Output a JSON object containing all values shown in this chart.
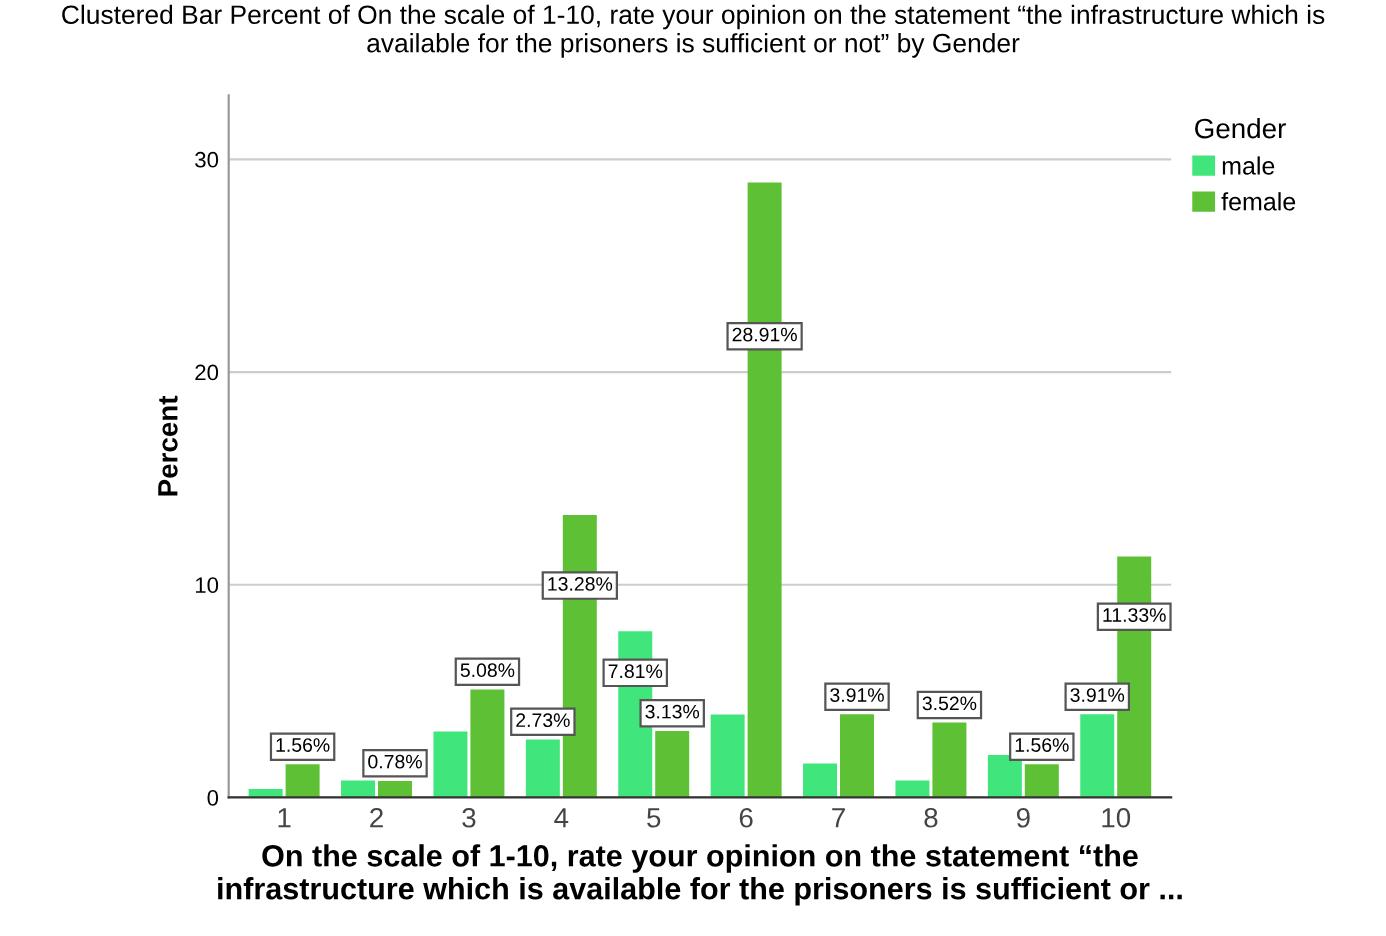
{
  "chart_data": {
    "type": "bar",
    "title": "Clustered Bar Percent of On the scale of 1-10, rate your opinion on the statement “the infrastructure which is\navailable for the prisoners is sufficient or not” by Gender",
    "xlabel": "On the scale of 1-10, rate your opinion on the statement “the\ninfrastructure which is available for the prisoners is sufficient or ...",
    "ylabel": "Percent",
    "legend_title": "Gender",
    "categories": [
      "1",
      "2",
      "3",
      "4",
      "5",
      "6",
      "7",
      "8",
      "9",
      "10"
    ],
    "series": [
      {
        "name": "male",
        "color": "#40e67c",
        "values": [
          0.4,
          0.8,
          3.1,
          2.73,
          7.81,
          3.9,
          1.6,
          0.8,
          2.0,
          3.91
        ],
        "value_labels": [
          null,
          null,
          null,
          "2.73%",
          "7.81%",
          null,
          null,
          null,
          null,
          "3.91%"
        ]
      },
      {
        "name": "female",
        "color": "#5ec035",
        "values": [
          1.56,
          0.78,
          5.08,
          13.28,
          3.13,
          28.91,
          3.91,
          3.52,
          1.56,
          11.33
        ],
        "value_labels": [
          "1.56%",
          "0.78%",
          "5.08%",
          "13.28%",
          "3.13%",
          "28.91%",
          "3.91%",
          "3.52%",
          "1.56%",
          "11.33%"
        ]
      }
    ],
    "ylim": [
      0,
      33
    ],
    "yticks": [
      0,
      10,
      20,
      30
    ],
    "grid": "y",
    "legend": "top right"
  }
}
